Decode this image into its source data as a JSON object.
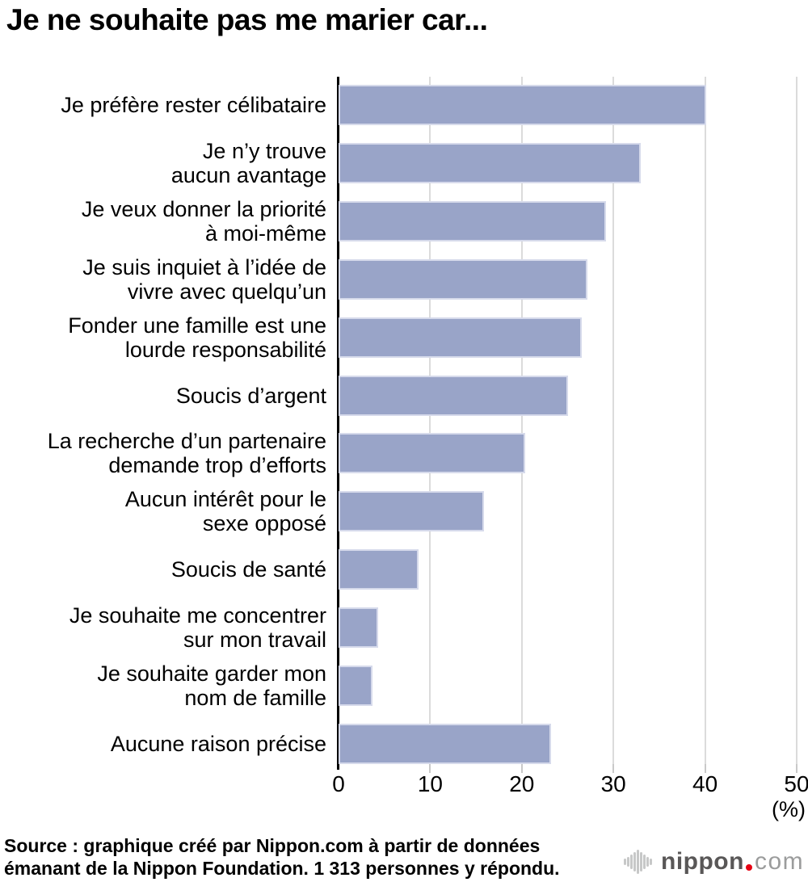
{
  "title": "Je ne souhaite pas me marier car...",
  "chart_data": {
    "type": "bar",
    "orientation": "horizontal",
    "title": "Je ne souhaite pas me marier car...",
    "unit": "(%)",
    "xlim": [
      0,
      50
    ],
    "x_ticks": [
      0,
      10,
      20,
      30,
      40,
      50
    ],
    "grid": true,
    "legend": false,
    "bar_color": "#99a4c8",
    "gridline_color": "#dbdbdb",
    "categories": [
      "Je préfère rester célibataire",
      "Je n’y trouve aucun avantage",
      "Je veux donner la priorité à moi-même",
      "Je suis inquiet à l’idée de vivre avec quelqu’un",
      "Fonder une famille est une lourde responsabilité",
      "Soucis d’argent",
      "La recherche d’un partenaire demande trop d’efforts",
      "Aucun intérêt pour le sexe opposé",
      "Soucis de santé",
      "Je souhaite me concentrer sur mon travail",
      "Je souhaite garder mon nom de famille",
      "Aucune raison précise"
    ],
    "category_lines": [
      [
        "Je préfère rester célibataire"
      ],
      [
        "Je n’y trouve",
        "aucun avantage"
      ],
      [
        "Je veux donner la priorité",
        "à moi-même"
      ],
      [
        "Je suis inquiet à l’idée de",
        "vivre avec quelqu’un"
      ],
      [
        "Fonder une famille est une",
        "lourde responsabilité"
      ],
      [
        "Soucis d’argent"
      ],
      [
        "La recherche d’un partenaire",
        "demande trop d’efforts"
      ],
      [
        "Aucun intérêt pour le",
        "sexe opposé"
      ],
      [
        "Soucis de santé"
      ],
      [
        "Je souhaite me concentrer",
        "sur mon travail"
      ],
      [
        "Je souhaite garder mon",
        "nom de famille"
      ],
      [
        "Aucune raison précise"
      ]
    ],
    "values": [
      40.1,
      33.0,
      29.2,
      27.2,
      26.5,
      25.0,
      20.4,
      15.9,
      8.7,
      4.3,
      3.7,
      23.2
    ]
  },
  "footer": {
    "line1": "Source : graphique créé par Nippon.com à partir de données",
    "line2": "émanant de la Nippon Foundation. 1 313 personnes y répondu."
  },
  "logo": {
    "brand": "nippon",
    "tld": "com",
    "dot_color": "#e60012",
    "icon": "soundwave"
  }
}
